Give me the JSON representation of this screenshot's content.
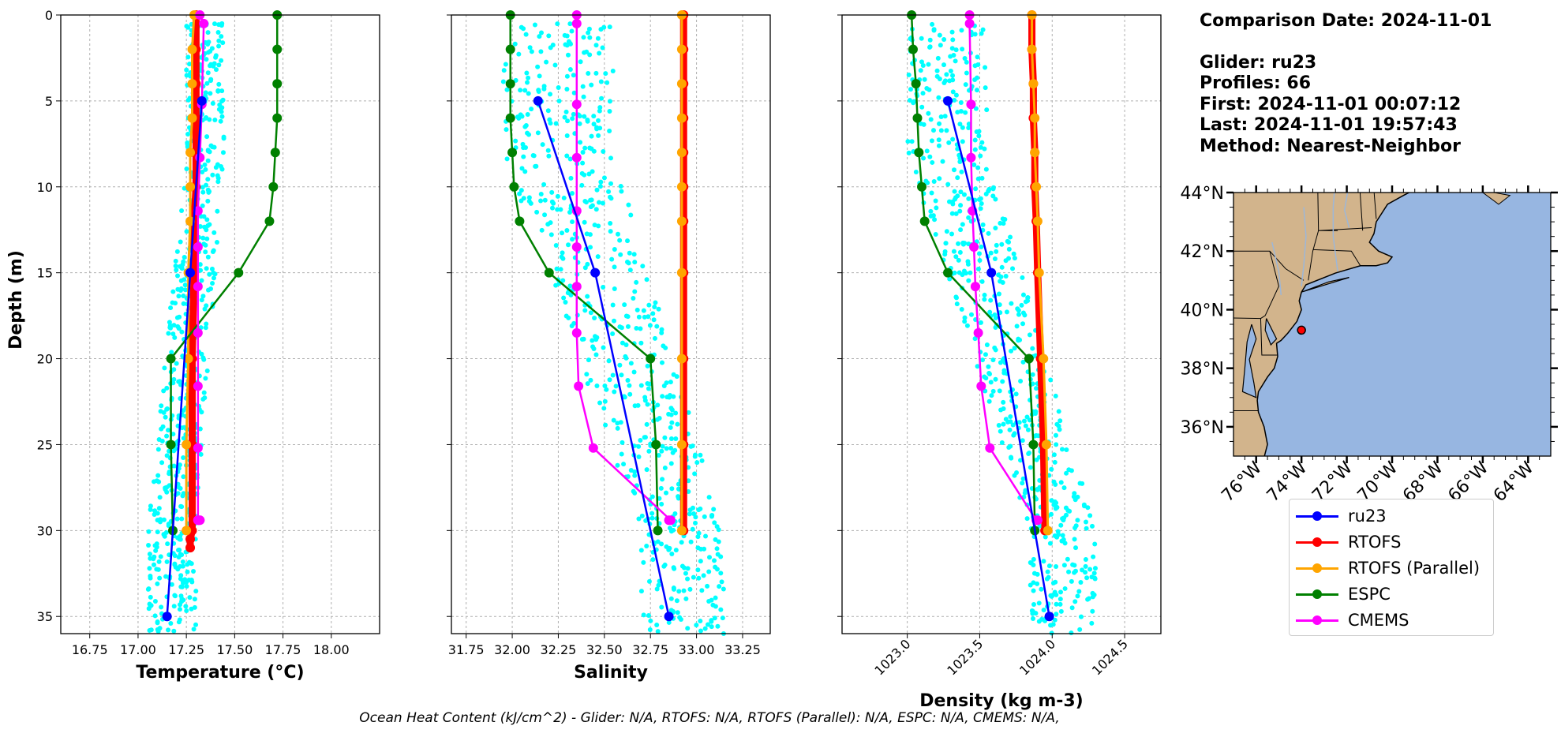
{
  "info": {
    "comparison_date": "Comparison Date: 2024-11-01",
    "glider": "Glider: ru23",
    "profiles": "Profiles: 66",
    "first": "First: 2024-11-01 00:07:12",
    "last": "Last: 2024-11-01 19:57:43",
    "method": "Method: Nearest-Neighbor"
  },
  "footer": "Ocean Heat Content (kJ/cm^2) - Glider: N/A,  RTOFS: N/A,  RTOFS (Parallel): N/A,  ESPC: N/A,  CMEMS: N/A,",
  "legend": [
    {
      "name": "ru23",
      "color": "#0000ff"
    },
    {
      "name": "RTOFS",
      "color": "#ff0000"
    },
    {
      "name": "RTOFS (Parallel)",
      "color": "#ffa500"
    },
    {
      "name": "ESPC",
      "color": "#008000"
    },
    {
      "name": "CMEMS",
      "color": "#ff00ff"
    }
  ],
  "colors": {
    "glider_scatter": "#00ffff",
    "land": "#d2b48c",
    "ocean": "#97b6e1",
    "grid": "#b0b0b0"
  },
  "chart_data": [
    {
      "type": "line",
      "xlabel": "Temperature (°C)",
      "ylabel": "Depth (m)",
      "xlim": [
        16.6,
        18.25
      ],
      "ylim": [
        36,
        0
      ],
      "xticks": [
        16.75,
        17.0,
        17.25,
        17.5,
        17.75,
        18.0
      ],
      "xtick_labels": [
        "16.75",
        "17.00",
        "17.25",
        "17.50",
        "17.75",
        "18.00"
      ],
      "yticks": [
        0,
        5,
        10,
        15,
        20,
        25,
        30,
        35
      ],
      "grid": true,
      "scatter_range": {
        "surface": [
          17.25,
          17.45
        ],
        "bottom": [
          17.05,
          17.3
        ]
      },
      "series": [
        {
          "name": "ru23",
          "x": [
            17.33,
            17.27,
            17.15
          ],
          "y": [
            5,
            15,
            35
          ]
        },
        {
          "name": "RTOFS",
          "x": [
            17.3,
            17.3,
            17.3,
            17.3,
            17.3,
            17.3,
            17.29,
            17.29,
            17.28,
            17.28,
            17.28,
            17.27,
            17.27
          ],
          "y": [
            0,
            2,
            4,
            6,
            8,
            10,
            12,
            15,
            20,
            25,
            30,
            30.5,
            31
          ]
        },
        {
          "name": "RTOFS (Parallel)",
          "x": [
            17.29,
            17.28,
            17.28,
            17.28,
            17.27,
            17.27,
            17.27,
            17.26,
            17.26,
            17.25,
            17.25
          ],
          "y": [
            0,
            2,
            4,
            6,
            8,
            10,
            12,
            15,
            20,
            25,
            30
          ]
        },
        {
          "name": "ESPC",
          "x": [
            17.72,
            17.72,
            17.72,
            17.72,
            17.71,
            17.7,
            17.68,
            17.52,
            17.17,
            17.17,
            17.18
          ],
          "y": [
            0,
            2,
            4,
            6,
            8,
            10,
            12,
            15,
            20,
            25,
            30
          ]
        },
        {
          "name": "CMEMS",
          "x": [
            17.32,
            17.34,
            17.33,
            17.32,
            17.31,
            17.31,
            17.31,
            17.31,
            17.31,
            17.31,
            17.31,
            17.31,
            17.32,
            17.32
          ],
          "y": [
            0,
            0.5,
            5.2,
            8.3,
            11.4,
            13.5,
            15.8,
            18.5,
            21.6,
            25.2,
            29.4,
            29.4,
            29.4,
            29.4
          ]
        }
      ]
    },
    {
      "type": "line",
      "xlabel": "Salinity",
      "xlim": [
        31.67,
        33.4
      ],
      "ylim": [
        36,
        0
      ],
      "xticks": [
        31.75,
        32.0,
        32.25,
        32.5,
        32.75,
        33.0,
        33.25
      ],
      "xtick_labels": [
        "31.75",
        "32.00",
        "32.25",
        "32.50",
        "32.75",
        "33.00",
        "33.25"
      ],
      "yticks": [
        0,
        5,
        10,
        15,
        20,
        25,
        30,
        35
      ],
      "grid": true,
      "scatter_range": {
        "surface": [
          31.95,
          32.55
        ],
        "bottom": [
          32.7,
          33.15
        ]
      },
      "series": [
        {
          "name": "ru23",
          "x": [
            32.14,
            32.45,
            32.85
          ],
          "y": [
            5,
            15,
            35
          ]
        },
        {
          "name": "RTOFS",
          "x": [
            32.93,
            32.93,
            32.93,
            32.93,
            32.93,
            32.93,
            32.93,
            32.93,
            32.93,
            32.93,
            32.93
          ],
          "y": [
            0,
            2,
            4,
            6,
            8,
            10,
            12,
            15,
            20,
            25,
            30
          ]
        },
        {
          "name": "RTOFS (Parallel)",
          "x": [
            32.92,
            32.92,
            32.92,
            32.92,
            32.92,
            32.92,
            32.92,
            32.92,
            32.92,
            32.92,
            32.92
          ],
          "y": [
            0,
            2,
            4,
            6,
            8,
            10,
            12,
            15,
            20,
            25,
            30
          ]
        },
        {
          "name": "ESPC",
          "x": [
            31.99,
            31.99,
            31.99,
            31.99,
            32.0,
            32.01,
            32.04,
            32.2,
            32.75,
            32.78,
            32.79
          ],
          "y": [
            0,
            2,
            4,
            6,
            8,
            10,
            12,
            15,
            20,
            25,
            30
          ]
        },
        {
          "name": "CMEMS",
          "x": [
            32.35,
            32.35,
            32.35,
            32.35,
            32.35,
            32.35,
            32.35,
            32.35,
            32.36,
            32.44,
            32.86,
            32.85
          ],
          "y": [
            0,
            0.5,
            5.2,
            8.3,
            11.4,
            13.5,
            15.8,
            18.5,
            21.6,
            25.2,
            29.4,
            29.4
          ]
        }
      ]
    },
    {
      "type": "line",
      "xlabel": "Density (kg m-3)",
      "xlim": [
        1022.55,
        1024.75
      ],
      "ylim": [
        36,
        0
      ],
      "xticks": [
        1023.0,
        1023.5,
        1024.0,
        1024.5
      ],
      "xtick_labels": [
        "1023.0",
        "1023.5",
        "1024.0",
        "1024.5"
      ],
      "yticks": [
        0,
        5,
        10,
        15,
        20,
        25,
        30,
        35
      ],
      "grid": true,
      "scatter_range": {
        "surface": [
          1023.0,
          1023.55
        ],
        "bottom": [
          1023.85,
          1024.3
        ]
      },
      "series": [
        {
          "name": "ru23",
          "x": [
            1023.28,
            1023.58,
            1023.98
          ],
          "y": [
            5,
            15,
            35
          ]
        },
        {
          "name": "RTOFS",
          "x": [
            1023.86,
            1023.86,
            1023.87,
            1023.87,
            1023.88,
            1023.88,
            1023.89,
            1023.9,
            1023.92,
            1023.94,
            1023.95
          ],
          "y": [
            0,
            2,
            4,
            6,
            8,
            10,
            12,
            15,
            20,
            25,
            30
          ]
        },
        {
          "name": "RTOFS (Parallel)",
          "x": [
            1023.86,
            1023.86,
            1023.87,
            1023.88,
            1023.88,
            1023.89,
            1023.9,
            1023.91,
            1023.94,
            1023.96,
            1023.97
          ],
          "y": [
            0,
            2,
            4,
            6,
            8,
            10,
            12,
            15,
            20,
            25,
            30
          ]
        },
        {
          "name": "ESPC",
          "x": [
            1023.03,
            1023.04,
            1023.06,
            1023.07,
            1023.08,
            1023.1,
            1023.12,
            1023.28,
            1023.84,
            1023.87,
            1023.88
          ],
          "y": [
            0,
            2,
            4,
            6,
            8,
            10,
            12,
            15,
            20,
            25,
            30
          ]
        },
        {
          "name": "CMEMS",
          "x": [
            1023.43,
            1023.43,
            1023.44,
            1023.44,
            1023.45,
            1023.46,
            1023.47,
            1023.49,
            1023.51,
            1023.57,
            1023.89,
            1023.9
          ],
          "y": [
            0,
            0.5,
            5.2,
            8.3,
            11.4,
            13.5,
            15.8,
            18.5,
            21.6,
            25.2,
            29.4,
            29.4
          ]
        }
      ]
    }
  ],
  "map": {
    "lat_ticks": [
      36,
      38,
      40,
      42,
      44
    ],
    "lat_labels": [
      "36°N",
      "38°N",
      "40°N",
      "42°N",
      "44°N"
    ],
    "lon_ticks": [
      -76,
      -74,
      -72,
      -70,
      -68,
      -66,
      -64
    ],
    "lon_labels": [
      "76°W",
      "74°W",
      "72°W",
      "70°W",
      "68°W",
      "66°W",
      "64°W"
    ],
    "lon_range": [
      -77,
      -63
    ],
    "lat_range": [
      35,
      44
    ],
    "glider_position": {
      "lon": -74.0,
      "lat": 39.3
    }
  }
}
